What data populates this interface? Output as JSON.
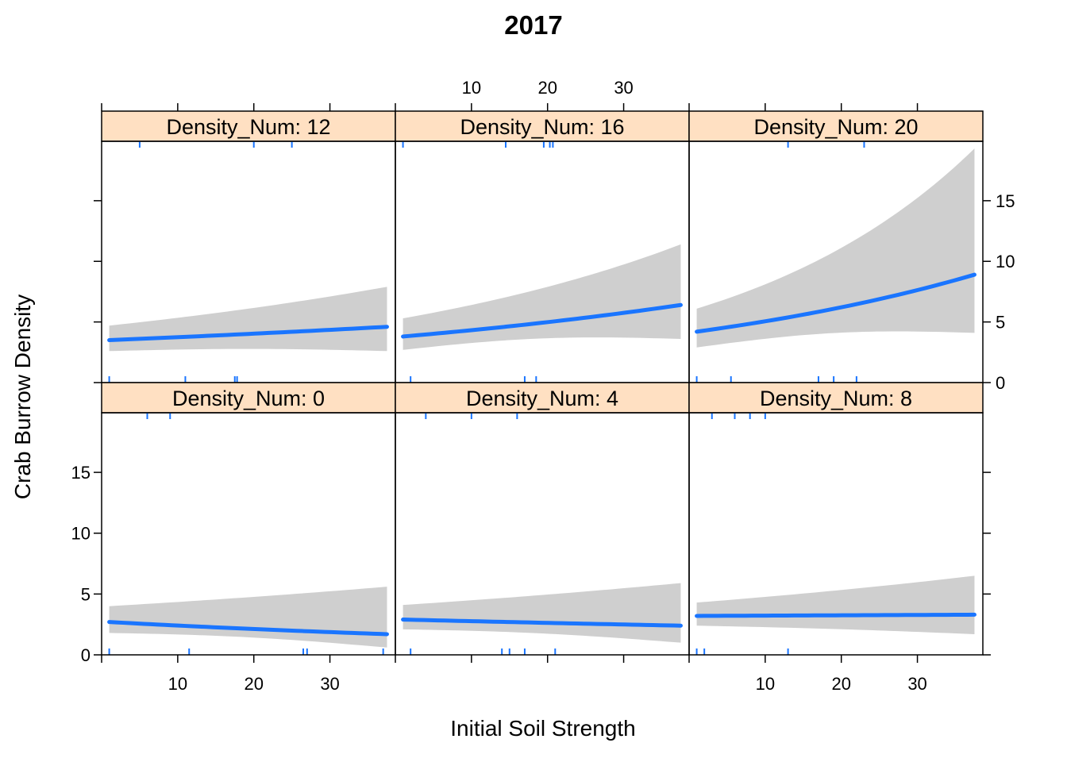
{
  "colors": {
    "line": "#1a75ff",
    "band": "#cfcfcf",
    "strip": "#ffe0c2",
    "rug": "#1a75ff",
    "frame": "#000000"
  },
  "chart_data": {
    "type": "line",
    "title": "2017",
    "xlabel": "Initial Soil Strength",
    "ylabel": "Crab Burrow Density",
    "xlim": [
      0,
      38.6
    ],
    "ylim": [
      0,
      19.9
    ],
    "x_ticks": [
      10,
      20,
      30
    ],
    "y_ticks": [
      0,
      5,
      10,
      15
    ],
    "x_tick_labels": [
      "10",
      "20",
      "30"
    ],
    "y_tick_labels": [
      "0",
      "5",
      "10",
      "15"
    ],
    "panels": [
      {
        "strip": "Density_Num: 12",
        "row": 0,
        "col": 0,
        "x": [
          1,
          37.5
        ],
        "fit": [
          3.5,
          4.6
        ],
        "lower": [
          2.6,
          2.6
        ],
        "upper": [
          4.7,
          7.9
        ],
        "rug_top": [
          5,
          20,
          25
        ],
        "rug_bottom": [
          1,
          11,
          17.5,
          17.8
        ]
      },
      {
        "strip": "Density_Num: 16",
        "row": 0,
        "col": 1,
        "x": [
          1,
          37.5
        ],
        "fit": [
          3.8,
          6.4
        ],
        "lower": [
          2.7,
          3.6
        ],
        "upper": [
          5.3,
          11.4
        ],
        "rug_top": [
          1,
          14.5,
          19.5,
          20.3,
          20.7
        ],
        "rug_bottom": [
          2,
          17,
          18.5
        ]
      },
      {
        "strip": "Density_Num: 20",
        "row": 0,
        "col": 2,
        "x": [
          1,
          37.5
        ],
        "fit": [
          4.2,
          8.9
        ],
        "lower": [
          2.9,
          4.1
        ],
        "upper": [
          6.1,
          19.3
        ],
        "rug_top": [
          13,
          23
        ],
        "rug_bottom": [
          1,
          5.5,
          17,
          19,
          22
        ]
      },
      {
        "strip": "Density_Num: 0",
        "row": 1,
        "col": 0,
        "x": [
          1,
          37.5
        ],
        "fit": [
          2.7,
          1.7
        ],
        "lower": [
          1.8,
          0.6
        ],
        "upper": [
          4.0,
          5.6
        ],
        "rug_top": [
          6,
          9
        ],
        "rug_bottom": [
          1,
          11.5,
          26.5,
          27,
          37
        ]
      },
      {
        "strip": "Density_Num: 4",
        "row": 1,
        "col": 1,
        "x": [
          1,
          37.5
        ],
        "fit": [
          2.9,
          2.4
        ],
        "lower": [
          2.1,
          1.0
        ],
        "upper": [
          4.1,
          5.9
        ],
        "rug_top": [
          4,
          10,
          16
        ],
        "rug_bottom": [
          2,
          14,
          15,
          17,
          21
        ]
      },
      {
        "strip": "Density_Num: 8",
        "row": 1,
        "col": 2,
        "x": [
          1,
          37.5
        ],
        "fit": [
          3.2,
          3.3
        ],
        "lower": [
          2.4,
          1.7
        ],
        "upper": [
          4.3,
          6.5
        ],
        "rug_top": [
          3,
          6,
          8,
          10
        ],
        "rug_bottom": [
          1,
          2,
          13
        ]
      }
    ]
  }
}
